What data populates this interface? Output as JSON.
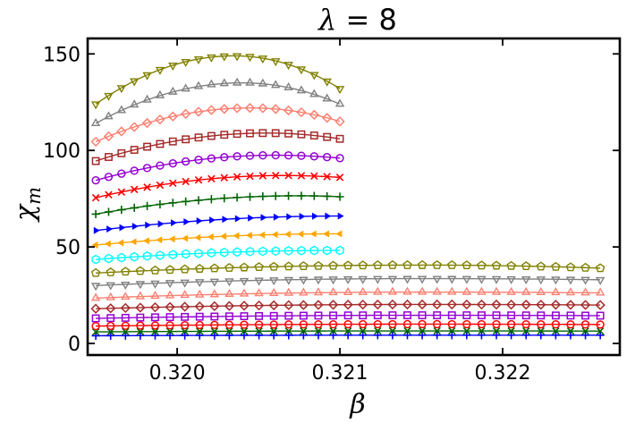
{
  "chart_data": {
    "type": "scatter",
    "title": "λ = 8",
    "title_symbol": "λ",
    "title_rest": " = 8",
    "xlabel": "β",
    "ylabel": "χ",
    "ylabel_subscript": "m",
    "xlim": [
      0.31945,
      0.32272
    ],
    "ylim": [
      -6,
      158
    ],
    "xticks": [
      0.32,
      0.321,
      0.322
    ],
    "xtick_labels": [
      "0.320",
      "0.321",
      "0.322"
    ],
    "yticks": [
      0,
      50,
      100,
      150
    ],
    "ytick_labels": [
      "0",
      "50",
      "100",
      "150"
    ],
    "legend": "none",
    "series": [
      {
        "name": "s1",
        "color": "#0000ff",
        "marker": "plus",
        "x_range": [
          0.3195,
          0.3226
        ],
        "points": 35,
        "y_start": 4.0,
        "y_peak": 4.3,
        "peak_x": 0.3215,
        "y_end": 4.3
      },
      {
        "name": "s2",
        "color": "#006400",
        "marker": "x",
        "x_range": [
          0.3195,
          0.3226
        ],
        "points": 35,
        "y_start": 6.0,
        "y_peak": 6.5,
        "peak_x": 0.3215,
        "y_end": 6.4
      },
      {
        "name": "s3",
        "color": "#ff0000",
        "marker": "circle",
        "x_range": [
          0.3195,
          0.3226
        ],
        "points": 35,
        "y_start": 9.0,
        "y_peak": 10.0,
        "peak_x": 0.3215,
        "y_end": 9.8
      },
      {
        "name": "s4",
        "color": "#9400d3",
        "marker": "square",
        "x_range": [
          0.3195,
          0.3226
        ],
        "points": 35,
        "y_start": 13.0,
        "y_peak": 14.6,
        "peak_x": 0.3215,
        "y_end": 14.4
      },
      {
        "name": "s5",
        "color": "#a52a2a",
        "marker": "diamond",
        "x_range": [
          0.3195,
          0.3226
        ],
        "points": 35,
        "y_start": 18.0,
        "y_peak": 20.2,
        "peak_x": 0.3215,
        "y_end": 19.9
      },
      {
        "name": "s6",
        "color": "#fa8072",
        "marker": "triangle-up",
        "x_range": [
          0.3195,
          0.3226
        ],
        "points": 35,
        "y_start": 23.5,
        "y_peak": 26.6,
        "peak_x": 0.3215,
        "y_end": 26.2
      },
      {
        "name": "s7",
        "color": "#808080",
        "marker": "triangle-down",
        "x_range": [
          0.3195,
          0.3226
        ],
        "points": 35,
        "y_start": 30.0,
        "y_peak": 33.6,
        "peak_x": 0.3215,
        "y_end": 33.0
      },
      {
        "name": "s8",
        "color": "#808000",
        "marker": "pentagon",
        "x_range": [
          0.3195,
          0.3226
        ],
        "points": 35,
        "y_start": 36.5,
        "y_peak": 40.6,
        "peak_x": 0.3215,
        "y_end": 39.0
      },
      {
        "name": "s9",
        "color": "#00ffff",
        "marker": "hexagon",
        "x_range": [
          0.3195,
          0.321
        ],
        "points": 20,
        "y_start": 43.5,
        "y_peak": 48.2,
        "peak_x": 0.321,
        "y_end": 48.2
      },
      {
        "name": "s10",
        "color": "#ffa500",
        "marker": "triangle-left",
        "x_range": [
          0.3195,
          0.321
        ],
        "points": 20,
        "y_start": 51.0,
        "y_peak": 56.8,
        "peak_x": 0.321,
        "y_end": 56.8
      },
      {
        "name": "s11",
        "color": "#0000ff",
        "marker": "triangle-right",
        "x_range": [
          0.3195,
          0.321
        ],
        "points": 20,
        "y_start": 58.5,
        "y_peak": 66.0,
        "peak_x": 0.321,
        "y_end": 66.0
      },
      {
        "name": "s12",
        "color": "#006400",
        "marker": "plus",
        "x_range": [
          0.3195,
          0.321
        ],
        "points": 20,
        "y_start": 67.0,
        "y_peak": 76.5,
        "peak_x": 0.32075,
        "y_end": 76.0
      },
      {
        "name": "s13",
        "color": "#ff0000",
        "marker": "x",
        "x_range": [
          0.3195,
          0.321
        ],
        "points": 20,
        "y_start": 75.5,
        "y_peak": 87.0,
        "peak_x": 0.32065,
        "y_end": 86.0
      },
      {
        "name": "s14",
        "color": "#9400d3",
        "marker": "circle",
        "x_range": [
          0.3195,
          0.321
        ],
        "points": 20,
        "y_start": 84.5,
        "y_peak": 97.5,
        "peak_x": 0.3206,
        "y_end": 96.0
      },
      {
        "name": "s15",
        "color": "#a52a2a",
        "marker": "square",
        "x_range": [
          0.3195,
          0.321
        ],
        "points": 20,
        "y_start": 94.5,
        "y_peak": 109.0,
        "peak_x": 0.32055,
        "y_end": 106.0
      },
      {
        "name": "s16",
        "color": "#fa8072",
        "marker": "diamond",
        "x_range": [
          0.3195,
          0.321
        ],
        "points": 20,
        "y_start": 104.5,
        "y_peak": 122.0,
        "peak_x": 0.32045,
        "y_end": 115.0
      },
      {
        "name": "s17",
        "color": "#808080",
        "marker": "triangle-up",
        "x_range": [
          0.3195,
          0.321
        ],
        "points": 20,
        "y_start": 114.0,
        "y_peak": 135.0,
        "peak_x": 0.3204,
        "y_end": 124.0
      },
      {
        "name": "s18",
        "color": "#808000",
        "marker": "triangle-down",
        "x_range": [
          0.3195,
          0.321
        ],
        "points": 20,
        "y_start": 124.0,
        "y_peak": 149.0,
        "peak_x": 0.32035,
        "y_end": 132.0
      }
    ]
  }
}
